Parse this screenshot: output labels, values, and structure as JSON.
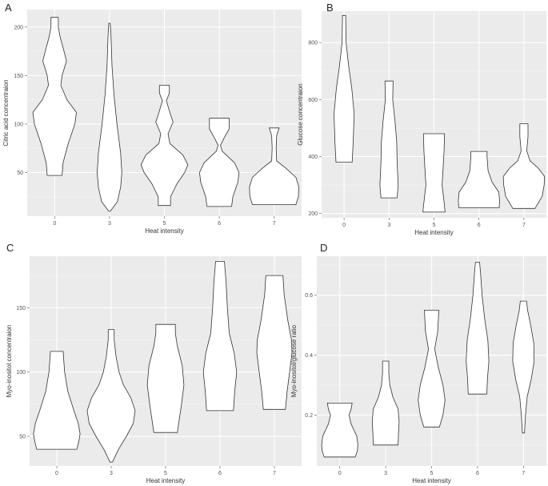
{
  "chart_data": [
    {
      "panel": "A",
      "type": "violin",
      "xlabel": "Heat intensity",
      "ylabel": "Citric acid concentraion",
      "categories": [
        "0",
        "3",
        "5",
        "6",
        "7"
      ],
      "yticks": [
        50,
        100,
        150,
        200
      ],
      "ylim": [
        5,
        218
      ],
      "violins": [
        {
          "x": "0",
          "profile": [
            [
              47,
              0.3
            ],
            [
              60,
              0.34
            ],
            [
              80,
              0.55
            ],
            [
              100,
              0.82
            ],
            [
              112,
              0.88
            ],
            [
              125,
              0.5
            ],
            [
              140,
              0.25
            ],
            [
              150,
              0.3
            ],
            [
              165,
              0.48
            ],
            [
              178,
              0.35
            ],
            [
              190,
              0.22
            ],
            [
              200,
              0.15
            ],
            [
              210,
              0.15
            ]
          ]
        },
        {
          "x": "3",
          "profile": [
            [
              10,
              0.03
            ],
            [
              20,
              0.32
            ],
            [
              35,
              0.45
            ],
            [
              50,
              0.5
            ],
            [
              70,
              0.45
            ],
            [
              100,
              0.3
            ],
            [
              130,
              0.18
            ],
            [
              160,
              0.1
            ],
            [
              190,
              0.06
            ],
            [
              204,
              0.03
            ]
          ]
        },
        {
          "x": "5",
          "profile": [
            [
              16,
              0.25
            ],
            [
              25,
              0.25
            ],
            [
              38,
              0.5
            ],
            [
              50,
              0.82
            ],
            [
              58,
              0.95
            ],
            [
              68,
              0.75
            ],
            [
              80,
              0.22
            ],
            [
              90,
              0.15
            ],
            [
              102,
              0.35
            ],
            [
              112,
              0.22
            ],
            [
              124,
              0.08
            ],
            [
              132,
              0.2
            ],
            [
              140,
              0.2
            ]
          ]
        },
        {
          "x": "6",
          "profile": [
            [
              15,
              0.5
            ],
            [
              25,
              0.55
            ],
            [
              40,
              0.75
            ],
            [
              50,
              0.8
            ],
            [
              60,
              0.62
            ],
            [
              72,
              0.12
            ],
            [
              78,
              0.05
            ],
            [
              85,
              0.18
            ],
            [
              95,
              0.4
            ],
            [
              106,
              0.4
            ]
          ]
        },
        {
          "x": "7",
          "profile": [
            [
              17,
              0.88
            ],
            [
              25,
              0.98
            ],
            [
              35,
              1.0
            ],
            [
              45,
              0.88
            ],
            [
              55,
              0.45
            ],
            [
              62,
              0.1
            ],
            [
              75,
              0.08
            ],
            [
              88,
              0.1
            ],
            [
              96,
              0.2
            ]
          ]
        }
      ]
    },
    {
      "panel": "B",
      "type": "violin",
      "xlabel": "Heat intensity",
      "ylabel": "Glucose concentraion",
      "categories": [
        "0",
        "3",
        "5",
        "6",
        "7"
      ],
      "yticks": [
        200,
        400,
        600,
        800
      ],
      "ylim": [
        185,
        910
      ],
      "violins": [
        {
          "x": "0",
          "profile": [
            [
              380,
              0.4
            ],
            [
              450,
              0.45
            ],
            [
              550,
              0.5
            ],
            [
              640,
              0.38
            ],
            [
              720,
              0.22
            ],
            [
              800,
              0.1
            ],
            [
              895,
              0.08
            ]
          ]
        },
        {
          "x": "3",
          "profile": [
            [
              255,
              0.4
            ],
            [
              300,
              0.45
            ],
            [
              380,
              0.4
            ],
            [
              450,
              0.38
            ],
            [
              520,
              0.3
            ],
            [
              600,
              0.18
            ],
            [
              665,
              0.2
            ]
          ]
        },
        {
          "x": "5",
          "profile": [
            [
              205,
              0.55
            ],
            [
              240,
              0.5
            ],
            [
              300,
              0.4
            ],
            [
              360,
              0.45
            ],
            [
              420,
              0.5
            ],
            [
              480,
              0.52
            ]
          ]
        },
        {
          "x": "6",
          "profile": [
            [
              220,
              1.0
            ],
            [
              245,
              1.02
            ],
            [
              275,
              0.98
            ],
            [
              310,
              0.65
            ],
            [
              350,
              0.45
            ],
            [
              400,
              0.4
            ],
            [
              418,
              0.4
            ]
          ]
        },
        {
          "x": "7",
          "profile": [
            [
              218,
              0.55
            ],
            [
              260,
              0.9
            ],
            [
              300,
              1.0
            ],
            [
              330,
              1.02
            ],
            [
              360,
              0.7
            ],
            [
              385,
              0.3
            ],
            [
              420,
              0.14
            ],
            [
              470,
              0.2
            ],
            [
              515,
              0.2
            ]
          ]
        }
      ]
    },
    {
      "panel": "C",
      "type": "violin",
      "xlabel": "Heat intensity",
      "ylabel": "Myo-inositol concentraion",
      "categories": [
        "0",
        "3",
        "5",
        "6",
        "7"
      ],
      "yticks": [
        50,
        100,
        150
      ],
      "ylim": [
        27,
        190
      ],
      "violins": [
        {
          "x": "0",
          "profile": [
            [
              40,
              0.82
            ],
            [
              46,
              0.9
            ],
            [
              52,
              0.95
            ],
            [
              60,
              0.88
            ],
            [
              70,
              0.7
            ],
            [
              85,
              0.45
            ],
            [
              100,
              0.32
            ],
            [
              110,
              0.28
            ],
            [
              116,
              0.26
            ]
          ]
        },
        {
          "x": "3",
          "profile": [
            [
              30,
              0.05
            ],
            [
              40,
              0.3
            ],
            [
              50,
              0.62
            ],
            [
              60,
              0.9
            ],
            [
              70,
              0.98
            ],
            [
              80,
              0.8
            ],
            [
              90,
              0.5
            ],
            [
              100,
              0.32
            ],
            [
              112,
              0.2
            ],
            [
              125,
              0.12
            ],
            [
              133,
              0.12
            ]
          ]
        },
        {
          "x": "5",
          "profile": [
            [
              53,
              0.48
            ],
            [
              62,
              0.55
            ],
            [
              75,
              0.65
            ],
            [
              90,
              0.75
            ],
            [
              105,
              0.68
            ],
            [
              120,
              0.48
            ],
            [
              130,
              0.4
            ],
            [
              137,
              0.4
            ]
          ]
        },
        {
          "x": "6",
          "profile": [
            [
              70,
              0.55
            ],
            [
              85,
              0.6
            ],
            [
              100,
              0.68
            ],
            [
              115,
              0.58
            ],
            [
              130,
              0.38
            ],
            [
              150,
              0.3
            ],
            [
              170,
              0.25
            ],
            [
              186,
              0.18
            ]
          ]
        },
        {
          "x": "7",
          "profile": [
            [
              71,
              0.45
            ],
            [
              85,
              0.52
            ],
            [
              100,
              0.62
            ],
            [
              115,
              0.72
            ],
            [
              125,
              0.7
            ],
            [
              140,
              0.55
            ],
            [
              160,
              0.4
            ],
            [
              175,
              0.35
            ]
          ]
        }
      ]
    },
    {
      "panel": "D",
      "type": "violin",
      "xlabel": "Heat intensity",
      "ylabel": "Myo-inositol/glucose ratio",
      "categories": [
        "0",
        "3",
        "5",
        "6",
        "7"
      ],
      "yticks": [
        0.2,
        0.4,
        0.6
      ],
      "ylim": [
        0.03,
        0.73
      ],
      "violins": [
        {
          "x": "0",
          "profile": [
            [
              0.06,
              0.75
            ],
            [
              0.08,
              0.85
            ],
            [
              0.1,
              0.88
            ],
            [
              0.13,
              0.82
            ],
            [
              0.17,
              0.55
            ],
            [
              0.2,
              0.45
            ],
            [
              0.22,
              0.55
            ],
            [
              0.24,
              0.6
            ]
          ]
        },
        {
          "x": "3",
          "profile": [
            [
              0.1,
              0.6
            ],
            [
              0.14,
              0.62
            ],
            [
              0.18,
              0.65
            ],
            [
              0.22,
              0.6
            ],
            [
              0.26,
              0.35
            ],
            [
              0.3,
              0.2
            ],
            [
              0.34,
              0.15
            ],
            [
              0.38,
              0.15
            ]
          ]
        },
        {
          "x": "5",
          "profile": [
            [
              0.16,
              0.38
            ],
            [
              0.2,
              0.55
            ],
            [
              0.25,
              0.65
            ],
            [
              0.3,
              0.55
            ],
            [
              0.36,
              0.32
            ],
            [
              0.42,
              0.15
            ],
            [
              0.48,
              0.3
            ],
            [
              0.55,
              0.35
            ]
          ]
        },
        {
          "x": "6",
          "profile": [
            [
              0.27,
              0.45
            ],
            [
              0.32,
              0.48
            ],
            [
              0.38,
              0.55
            ],
            [
              0.45,
              0.5
            ],
            [
              0.52,
              0.35
            ],
            [
              0.6,
              0.22
            ],
            [
              0.67,
              0.15
            ],
            [
              0.71,
              0.1
            ]
          ]
        },
        {
          "x": "7",
          "profile": [
            [
              0.14,
              0.05
            ],
            [
              0.2,
              0.1
            ],
            [
              0.26,
              0.18
            ],
            [
              0.32,
              0.38
            ],
            [
              0.38,
              0.52
            ],
            [
              0.44,
              0.5
            ],
            [
              0.5,
              0.35
            ],
            [
              0.55,
              0.2
            ],
            [
              0.58,
              0.15
            ]
          ]
        }
      ]
    }
  ]
}
